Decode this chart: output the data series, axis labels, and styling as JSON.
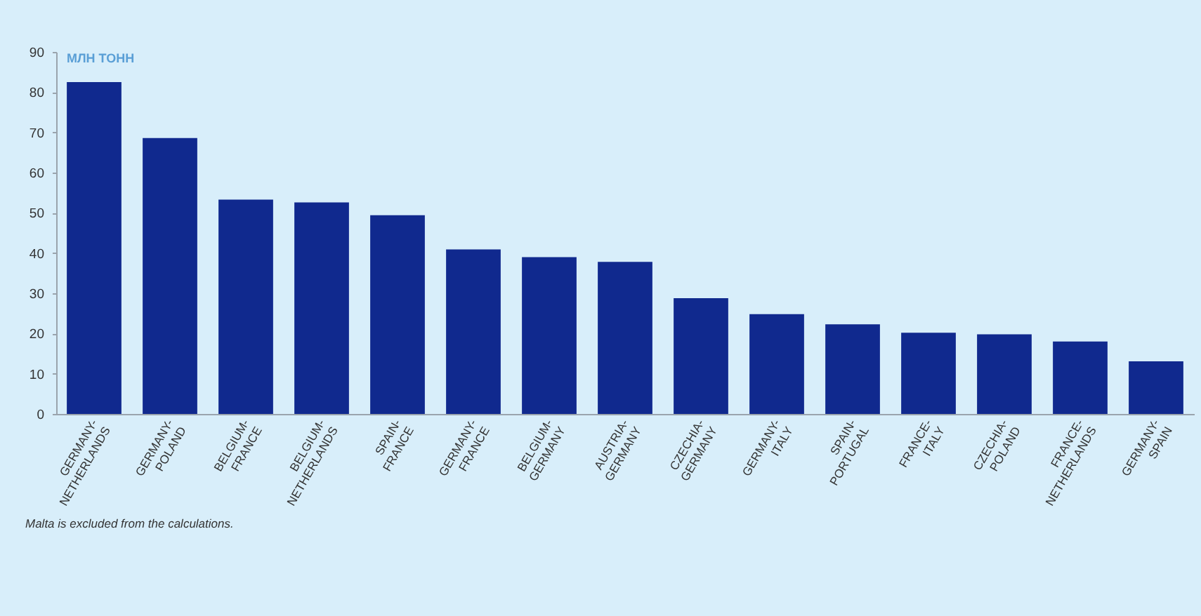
{
  "chart_data": {
    "type": "bar",
    "ylabel": "МЛН ТОНН",
    "categories": [
      "GERMANY-NETHERLANDS",
      "GERMANY-POLAND",
      "BELGIUM-FRANCE",
      "BELGIUM-NETHERLANDS",
      "SPAIN-FRANCE",
      "GERMANY-FRANCE",
      "BELGIUM-GERMANY",
      "AUSTRIA-GERMANY",
      "CZECHIA-GERMANY",
      "GERMANY-ITALY",
      "SPAIN-PORTUGAL",
      "FRANCE-ITALY",
      "CZECHIA-POLAND",
      "FRANCE-NETHERLANDS",
      "GERMANY-SPAIN"
    ],
    "values": [
      82.5,
      68.6,
      53.3,
      52.6,
      49.4,
      40.9,
      39.0,
      37.8,
      28.8,
      24.8,
      22.3,
      20.2,
      19.8,
      18.0,
      13.1
    ],
    "color": "#10298e",
    "ylim": [
      0,
      90
    ],
    "yticks": [
      0,
      10,
      20,
      30,
      40,
      50,
      60,
      70,
      80,
      90
    ],
    "grid": false,
    "annotations": [
      "Malta is excluded from the calculations."
    ]
  }
}
